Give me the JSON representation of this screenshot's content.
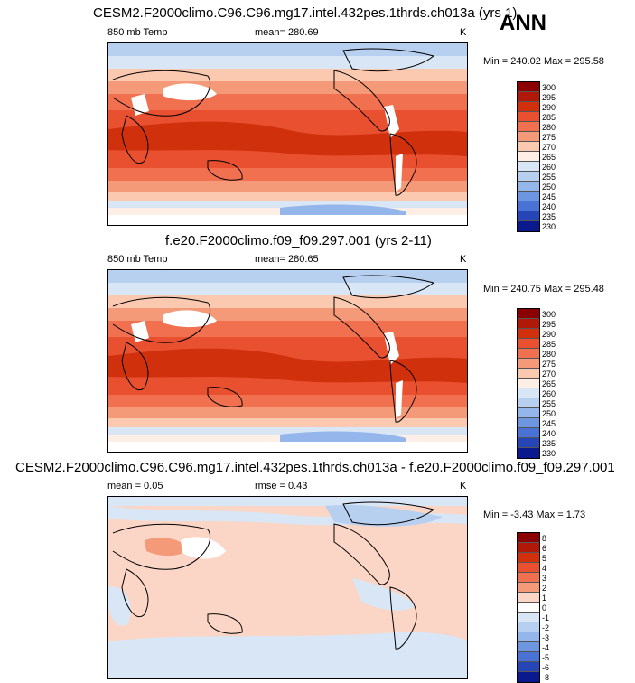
{
  "corner_label": "ANN",
  "panels": [
    {
      "title": "CESM2.F2000climo.C96.C96.mg17.intel.432pes.1thrds.ch013a (yrs 1)",
      "left_label": "850 mb Temp",
      "center_label": "mean= 280.69",
      "right_label": "K",
      "minmax": "Min = 240.02 Max = 295.58",
      "colorbar_labels": [
        "300",
        "295",
        "290",
        "285",
        "280",
        "275",
        "270",
        "265",
        "260",
        "255",
        "250",
        "245",
        "240",
        "235",
        "230"
      ]
    },
    {
      "title": "f.e20.F2000climo.f09_f09.297.001 (yrs 2-11)",
      "left_label": "850 mb Temp",
      "center_label": "mean= 280.65",
      "right_label": "K",
      "minmax": "Min = 240.75 Max = 295.48",
      "colorbar_labels": [
        "300",
        "295",
        "290",
        "285",
        "280",
        "275",
        "270",
        "265",
        "260",
        "255",
        "250",
        "245",
        "240",
        "235",
        "230"
      ]
    },
    {
      "title": "CESM2.F2000climo.C96.C96.mg17.intel.432pes.1thrds.ch013a - f.e20.F2000climo.f09_f09.297.001",
      "left_label": "mean =   0.05",
      "center_label": "rmse =   0.43",
      "right_label": "K",
      "minmax": "Min =  -3.43 Max =   1.73",
      "colorbar_labels": [
        "8",
        "6",
        "5",
        "4",
        "3",
        "2",
        "1",
        "0",
        "-1",
        "-2",
        "-3",
        "-4",
        "-5",
        "-6",
        "-8"
      ]
    }
  ],
  "colors": {
    "abs_scale": [
      "#8b0000",
      "#b01808",
      "#d0300c",
      "#e85030",
      "#f07050",
      "#f59a78",
      "#fbc8b0",
      "#fdeee6",
      "#d8e6f6",
      "#b8d0f0",
      "#94b6ea",
      "#6e96e0",
      "#4a72d4",
      "#2646b8",
      "#0a1a8c"
    ],
    "diff_scale": [
      "#8b0000",
      "#b01808",
      "#d0300c",
      "#e85030",
      "#f07050",
      "#f59a78",
      "#fbd6c6",
      "#ffffff",
      "#d8e6f6",
      "#b8d0f0",
      "#94b6ea",
      "#6e96e0",
      "#4a72d4",
      "#2646b8",
      "#0a1a8c"
    ]
  }
}
